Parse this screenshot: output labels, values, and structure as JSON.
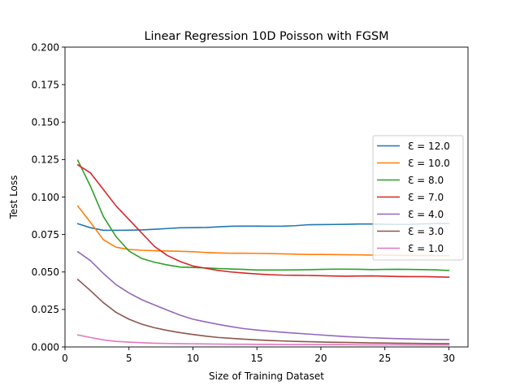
{
  "chart_data": {
    "type": "line",
    "title": "Linear Regression 10D Poisson with FGSM",
    "xlabel": "Size of Training Dataset",
    "ylabel": "Test Loss",
    "xlim": [
      0.0,
      31.5
    ],
    "ylim": [
      0.0,
      0.2
    ],
    "xticks": [
      0,
      5,
      10,
      15,
      20,
      25,
      30
    ],
    "yticks": [
      0.0,
      0.025,
      0.05,
      0.075,
      0.1,
      0.125,
      0.15,
      0.175,
      0.2
    ],
    "xtick_labels": [
      "0",
      "5",
      "10",
      "15",
      "20",
      "25",
      "30"
    ],
    "ytick_labels": [
      "0.000",
      "0.025",
      "0.050",
      "0.075",
      "0.100",
      "0.125",
      "0.150",
      "0.175",
      "0.200"
    ],
    "legend_position": "center-right",
    "x": [
      1,
      2,
      3,
      4,
      5,
      6,
      7,
      8,
      9,
      10,
      11,
      12,
      13,
      14,
      15,
      16,
      17,
      18,
      19,
      20,
      21,
      22,
      23,
      24,
      25,
      26,
      27,
      28,
      29,
      30
    ],
    "series": [
      {
        "name": "Ɛ = 12.0",
        "color": "#1f77b4",
        "values": [
          0.0822,
          0.0795,
          0.0778,
          0.0778,
          0.0779,
          0.0781,
          0.0785,
          0.079,
          0.0795,
          0.0796,
          0.0797,
          0.0801,
          0.0805,
          0.0806,
          0.0806,
          0.0805,
          0.0806,
          0.0809,
          0.0815,
          0.0816,
          0.0817,
          0.0818,
          0.082,
          0.082,
          0.0818,
          0.0817,
          0.0818,
          0.0821,
          0.0823,
          0.0823
        ]
      },
      {
        "name": "Ɛ = 10.0",
        "color": "#ff7f0e",
        "values": [
          0.094,
          0.083,
          0.0715,
          0.0665,
          0.065,
          0.0645,
          0.0642,
          0.064,
          0.0638,
          0.0635,
          0.063,
          0.0627,
          0.0625,
          0.0625,
          0.0624,
          0.0623,
          0.0621,
          0.0619,
          0.0617,
          0.0617,
          0.0616,
          0.0615,
          0.0614,
          0.0613,
          0.0612,
          0.0611,
          0.061,
          0.061,
          0.0609,
          0.0609
        ]
      },
      {
        "name": "Ɛ = 8.0",
        "color": "#2ca02c",
        "values": [
          0.1245,
          0.107,
          0.087,
          0.0735,
          0.064,
          0.059,
          0.0565,
          0.0547,
          0.0533,
          0.053,
          0.0527,
          0.0523,
          0.052,
          0.0517,
          0.0513,
          0.0513,
          0.0513,
          0.0514,
          0.0515,
          0.0517,
          0.0519,
          0.0519,
          0.0518,
          0.0516,
          0.0517,
          0.0518,
          0.0517,
          0.0516,
          0.0514,
          0.051
        ]
      },
      {
        "name": "Ɛ = 7.0",
        "color": "#d62728",
        "values": [
          0.1215,
          0.116,
          0.105,
          0.094,
          0.085,
          0.076,
          0.067,
          0.061,
          0.057,
          0.054,
          0.0525,
          0.051,
          0.05,
          0.0493,
          0.0487,
          0.0482,
          0.0479,
          0.0478,
          0.0477,
          0.0475,
          0.0473,
          0.0472,
          0.0473,
          0.0474,
          0.0472,
          0.047,
          0.0469,
          0.0469,
          0.0467,
          0.0465
        ]
      },
      {
        "name": "Ɛ = 4.0",
        "color": "#9467bd",
        "values": [
          0.0635,
          0.0575,
          0.049,
          0.0415,
          0.036,
          0.0315,
          0.028,
          0.0245,
          0.0212,
          0.0185,
          0.0167,
          0.015,
          0.0135,
          0.0122,
          0.0113,
          0.0105,
          0.0098,
          0.0092,
          0.0086,
          0.008,
          0.0074,
          0.0069,
          0.0065,
          0.0061,
          0.0058,
          0.0055,
          0.0053,
          0.0051,
          0.005,
          0.0049
        ]
      },
      {
        "name": "Ɛ = 3.0",
        "color": "#8c564b",
        "values": [
          0.045,
          0.0375,
          0.0295,
          0.023,
          0.0185,
          0.0152,
          0.0128,
          0.011,
          0.0095,
          0.0083,
          0.0072,
          0.0063,
          0.0057,
          0.0052,
          0.0047,
          0.0043,
          0.004,
          0.0037,
          0.0035,
          0.0033,
          0.0031,
          0.003,
          0.0028,
          0.0027,
          0.0026,
          0.0025,
          0.0024,
          0.0023,
          0.0022,
          0.0022
        ]
      },
      {
        "name": "Ɛ = 1.0",
        "color": "#e377c2",
        "values": [
          0.008,
          0.0063,
          0.0047,
          0.0037,
          0.0032,
          0.0028,
          0.0025,
          0.0023,
          0.0022,
          0.0021,
          0.002,
          0.0019,
          0.0018,
          0.0018,
          0.0017,
          0.0017,
          0.0016,
          0.0016,
          0.0016,
          0.0015,
          0.0015,
          0.0015,
          0.0014,
          0.0014,
          0.0014,
          0.0014,
          0.0013,
          0.0013,
          0.0013,
          0.0013
        ]
      }
    ]
  }
}
